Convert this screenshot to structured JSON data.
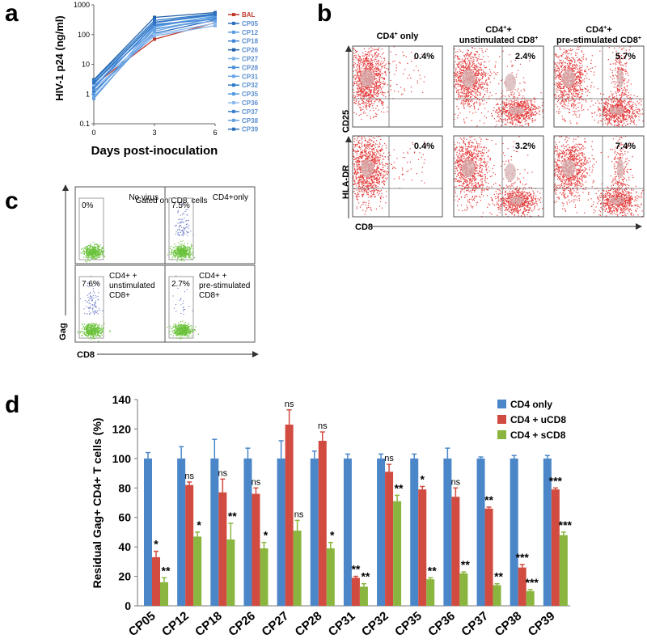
{
  "panel_letters": {
    "a": "a",
    "b": "b",
    "c": "c",
    "d": "d"
  },
  "colors": {
    "bal": "#c0392b",
    "cp": "#3a7bd5",
    "cd4": "#4a86c8",
    "ucd8": "#d14b40",
    "scd8": "#8ab63f",
    "flow": "#e33b3b",
    "flowDense": "#d6b3b3",
    "gagGreen": "#6ac23a",
    "gagBlue": "#6a78c8"
  },
  "panel_a": {
    "ylabel": "HIV-1 p24 (ng/ml)",
    "xlabel": "Days post-inoculation",
    "legend": [
      "BAL",
      "CP05",
      "CP12",
      "CP18",
      "CP26",
      "CP27",
      "CP28",
      "CP31",
      "CP32",
      "CP35",
      "CP36",
      "CP37",
      "CP38",
      "CP39"
    ],
    "chart_data": {
      "type": "line",
      "title": "",
      "xlabel": "Days post-inoculation",
      "ylabel": "HIV-1 p24 (ng/ml)",
      "yscale": "log",
      "ylim": [
        0.1,
        1000
      ],
      "x": [
        0,
        3,
        6
      ],
      "xticks": [
        "0",
        "3",
        "6"
      ],
      "yticks": [
        "0.1",
        "1",
        "10",
        "100",
        "1000"
      ],
      "series": [
        {
          "name": "BAL",
          "values": [
            2.0,
            70,
            250
          ]
        },
        {
          "name": "CP05",
          "values": [
            1.2,
            110,
            310
          ]
        },
        {
          "name": "CP12",
          "values": [
            2.5,
            150,
            350
          ]
        },
        {
          "name": "CP18",
          "values": [
            1.8,
            200,
            400
          ]
        },
        {
          "name": "CP26",
          "values": [
            3.0,
            380,
            550
          ]
        },
        {
          "name": "CP27",
          "values": [
            1.5,
            90,
            200
          ]
        },
        {
          "name": "CP28",
          "values": [
            2.2,
            250,
            450
          ]
        },
        {
          "name": "CP31",
          "values": [
            0.8,
            130,
            380
          ]
        },
        {
          "name": "CP32",
          "values": [
            2.8,
            300,
            500
          ]
        },
        {
          "name": "CP35",
          "values": [
            1.0,
            180,
            420
          ]
        },
        {
          "name": "CP36",
          "values": [
            2.0,
            100,
            240
          ]
        },
        {
          "name": "CP37",
          "values": [
            1.6,
            220,
            330
          ]
        },
        {
          "name": "CP38",
          "values": [
            0.7,
            160,
            290
          ]
        },
        {
          "name": "CP39",
          "values": [
            2.4,
            260,
            480
          ]
        }
      ]
    }
  },
  "panel_b": {
    "col_headers": [
      {
        "main": "CD4",
        "sup": "+",
        "rest": " only",
        "line2": ""
      },
      {
        "main": "CD4",
        "sup": "+",
        "rest": "+",
        "line2": "unstimulated CD8",
        "line2sup": "+"
      },
      {
        "main": "CD4",
        "sup": "+",
        "rest": "+",
        "line2": "pre-stimulated CD8",
        "line2sup": "+"
      }
    ],
    "row_labels": [
      "CD25",
      "HLA-DR"
    ],
    "xlabel": "CD8",
    "percents": [
      [
        "0.4%",
        "2.4%",
        "5.7%"
      ],
      [
        "0.4%",
        "3.2%",
        "7.4%"
      ]
    ]
  },
  "panel_c": {
    "title_pre": "Gated on CD8",
    "title_sup": "-",
    "title_post": " cells",
    "ylabel": "Gag",
    "xlabel": "CD8",
    "cells": [
      {
        "pct": "0%",
        "label_lines": [
          "No virus"
        ]
      },
      {
        "pct": "7.5%",
        "label_lines": [
          "CD4+only"
        ]
      },
      {
        "pct": "7.6%",
        "label_lines": [
          "CD4+ +",
          "unstimulated",
          "CD8+"
        ]
      },
      {
        "pct": "2.7%",
        "label_lines": [
          "CD4+ +",
          "pre-stimulated",
          "CD8+"
        ]
      }
    ]
  },
  "panel_d": {
    "chart_data": {
      "type": "bar",
      "title": "",
      "xlabel": "",
      "ylabel": "Residual Gag+ CD4+ T cells (%)",
      "ylim": [
        0,
        140
      ],
      "yticks": [
        0,
        20,
        40,
        60,
        80,
        100,
        120,
        140
      ],
      "categories": [
        "CP05",
        "CP12",
        "CP18",
        "CP26",
        "CP27",
        "CP28",
        "CP31",
        "CP32",
        "CP35",
        "CP36",
        "CP37",
        "CP38",
        "CP39"
      ],
      "series": [
        {
          "name": "CD4 only",
          "values": [
            100,
            100,
            100,
            100,
            100,
            100,
            100,
            100,
            100,
            100,
            100,
            100,
            100
          ],
          "errors": [
            4,
            8,
            13,
            7,
            12,
            5,
            3,
            3,
            3,
            7,
            1,
            2,
            2
          ]
        },
        {
          "name": "CD4 + uCD8",
          "values": [
            33,
            82,
            77,
            76,
            123,
            112,
            19,
            91,
            79,
            74,
            66,
            26,
            79
          ],
          "errors": [
            4,
            2,
            9,
            4,
            10,
            6,
            1,
            5,
            2,
            6,
            1,
            2,
            1
          ]
        },
        {
          "name": "CD4 + sCD8",
          "values": [
            16,
            47,
            45,
            39,
            51,
            39,
            13,
            71,
            18,
            22,
            14,
            10,
            48
          ],
          "errors": [
            3,
            3,
            11,
            4,
            7,
            4,
            2,
            4,
            1,
            1,
            1,
            1,
            2
          ]
        }
      ],
      "annotations": {
        "uCD8": [
          "*",
          "ns",
          "ns",
          "ns",
          "ns",
          "ns",
          "**",
          "ns",
          "*",
          "ns",
          "**",
          "***",
          "***"
        ],
        "sCD8": [
          "**",
          "*",
          "**",
          "*",
          "ns",
          "*",
          "**",
          "**",
          "**",
          "**",
          "**",
          "***",
          "***"
        ]
      }
    }
  }
}
